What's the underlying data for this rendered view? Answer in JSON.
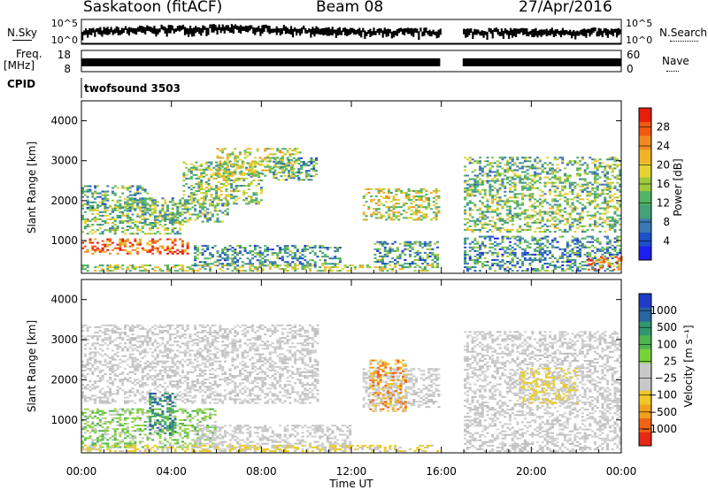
{
  "header": {
    "station": "Saskatoon (fitACF)",
    "beam": "Beam 08",
    "date": "27/Apr/2016"
  },
  "aux_panels": {
    "nsky_label": "N.Sky",
    "nsearch_label": "N.Search",
    "noise_ticks": [
      "10^5",
      "10^0"
    ],
    "noise_ticks_right": [
      "10^5",
      "10^0"
    ],
    "freq_label_line1": "Freq.",
    "freq_label_line2": "[MHz]",
    "freq_ticks": [
      "18",
      "8"
    ],
    "nave_label": "Nave",
    "nave_ticks": [
      "60",
      "0"
    ],
    "cpid_label": "CPID",
    "cpid_value": "twofsound 3503"
  },
  "chart_data": [
    {
      "type": "heatmap",
      "name": "power",
      "ylabel": "Slant Range [km]",
      "ylim": [
        180,
        4500
      ],
      "xlim": [
        0,
        24
      ],
      "y_ticks": [
        1000,
        2000,
        3000,
        4000
      ],
      "colorbar": {
        "label": "Power [dB]",
        "ticks": [
          "4",
          "8",
          "12",
          "16",
          "20",
          "24",
          "28"
        ],
        "colors": [
          "#1e1ef0",
          "#1e50c8",
          "#3c78b4",
          "#46a078",
          "#50b464",
          "#a0c83c",
          "#e6d232",
          "#f0b428",
          "#f08c1e",
          "#f05a14",
          "#e61e0a"
        ]
      },
      "data_gap_hours": [
        15.95,
        16.95
      ],
      "echo_bands": [
        {
          "t0": 0.0,
          "t1": 4.8,
          "r0": 650,
          "r1": 1050,
          "level": 0.85
        },
        {
          "t0": 0.0,
          "t1": 4.5,
          "r0": 1150,
          "r1": 1900,
          "level": 0.45
        },
        {
          "t0": 0.0,
          "t1": 3.0,
          "r0": 1800,
          "r1": 2400,
          "level": 0.35
        },
        {
          "t0": 2.0,
          "t1": 6.5,
          "r0": 1450,
          "r1": 2100,
          "level": 0.4
        },
        {
          "t0": 4.5,
          "t1": 8.0,
          "r0": 1900,
          "r1": 3000,
          "level": 0.45
        },
        {
          "t0": 6.0,
          "t1": 9.8,
          "r0": 2600,
          "r1": 3300,
          "level": 0.55
        },
        {
          "t0": 8.5,
          "t1": 10.5,
          "r0": 2500,
          "r1": 3100,
          "level": 0.35
        },
        {
          "t0": 5.0,
          "t1": 11.5,
          "r0": 350,
          "r1": 900,
          "level": 0.3
        },
        {
          "t0": 0.0,
          "t1": 15.9,
          "r0": 220,
          "r1": 420,
          "level": 0.5
        },
        {
          "t0": 12.5,
          "t1": 15.9,
          "r0": 1500,
          "r1": 2300,
          "level": 0.55
        },
        {
          "t0": 13.0,
          "t1": 15.9,
          "r0": 400,
          "r1": 1000,
          "level": 0.3
        },
        {
          "t0": 17.0,
          "t1": 24.0,
          "r0": 1200,
          "r1": 2200,
          "level": 0.45
        },
        {
          "t0": 17.0,
          "t1": 24.0,
          "r0": 2200,
          "r1": 3100,
          "level": 0.4
        },
        {
          "t0": 17.0,
          "t1": 24.0,
          "r0": 220,
          "r1": 1100,
          "level": 0.3
        },
        {
          "t0": 22.5,
          "t1": 24.0,
          "r0": 250,
          "r1": 600,
          "level": 0.85
        }
      ]
    },
    {
      "type": "heatmap",
      "name": "velocity",
      "ylabel": "Slant Range [km]",
      "xlabel": "Time UT",
      "ylim": [
        180,
        4500
      ],
      "xlim": [
        0,
        24
      ],
      "y_ticks": [
        1000,
        2000,
        3000,
        4000
      ],
      "x_tick_labels": [
        "00:00",
        "04:00",
        "08:00",
        "12:00",
        "16:00",
        "20:00",
        "00:00"
      ],
      "x_ticks_hours": [
        0,
        4,
        8,
        12,
        16,
        20,
        24
      ],
      "colorbar": {
        "label": "Velocity [m s⁻¹]",
        "ticks": [
          "1000",
          "500",
          "100",
          "25",
          "−25",
          "−100",
          "−500",
          "−1000"
        ],
        "colors": [
          "#1e3cc8",
          "#2864a0",
          "#32966e",
          "#50b450",
          "#78d23c",
          "#c8c8c8",
          "#c8c8c8",
          "#f0c828",
          "#f0a01e",
          "#f06414",
          "#e62814"
        ]
      },
      "data_gap_hours": [
        15.95,
        16.95
      ],
      "echo_bands": [
        {
          "t0": 0.0,
          "t1": 10.5,
          "r0": 1400,
          "r1": 3400,
          "cls": "gray"
        },
        {
          "t0": 0.0,
          "t1": 6.0,
          "r0": 300,
          "r1": 1300,
          "cls": "green"
        },
        {
          "t0": 3.0,
          "t1": 4.2,
          "r0": 600,
          "r1": 1700,
          "cls": "teal"
        },
        {
          "t0": 5.0,
          "t1": 12.0,
          "r0": 250,
          "r1": 900,
          "cls": "gray"
        },
        {
          "t0": 0.0,
          "t1": 15.9,
          "r0": 200,
          "r1": 380,
          "cls": "yellow"
        },
        {
          "t0": 12.5,
          "t1": 15.9,
          "r0": 1300,
          "r1": 2300,
          "cls": "gray"
        },
        {
          "t0": 12.8,
          "t1": 14.5,
          "r0": 1200,
          "r1": 2500,
          "cls": "orange"
        },
        {
          "t0": 17.0,
          "t1": 24.0,
          "r0": 200,
          "r1": 3200,
          "cls": "gray"
        },
        {
          "t0": 19.5,
          "t1": 22.0,
          "r0": 1400,
          "r1": 2300,
          "cls": "yellow"
        }
      ]
    }
  ]
}
